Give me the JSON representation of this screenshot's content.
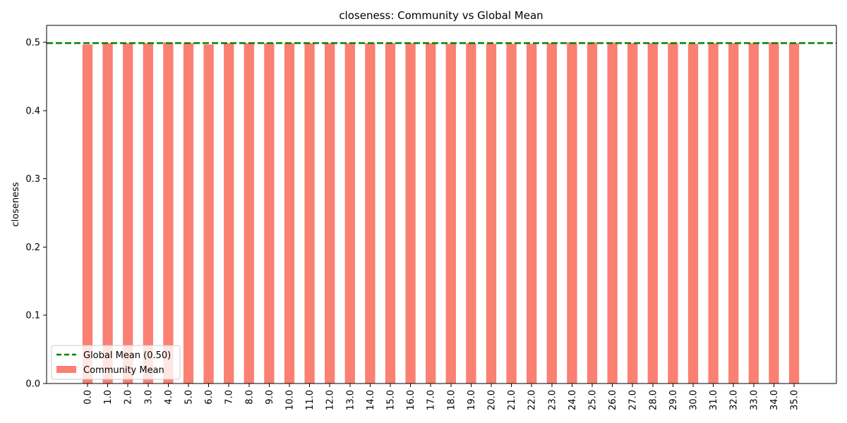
{
  "chart_data": {
    "type": "bar",
    "title": "closeness: Community vs Global Mean",
    "xlabel": "",
    "ylabel": "closeness",
    "categories": [
      "0.0",
      "1.0",
      "2.0",
      "3.0",
      "4.0",
      "5.0",
      "6.0",
      "7.0",
      "8.0",
      "9.0",
      "10.0",
      "11.0",
      "12.0",
      "13.0",
      "14.0",
      "15.0",
      "16.0",
      "17.0",
      "18.0",
      "19.0",
      "20.0",
      "21.0",
      "22.0",
      "23.0",
      "24.0",
      "25.0",
      "26.0",
      "27.0",
      "28.0",
      "29.0",
      "30.0",
      "31.0",
      "32.0",
      "33.0",
      "34.0",
      "35.0"
    ],
    "series": [
      {
        "name": "Community Mean",
        "color": "#fa8072",
        "values": [
          0.497,
          0.499,
          0.499,
          0.499,
          0.5,
          0.499,
          0.497,
          0.499,
          0.499,
          0.499,
          0.499,
          0.499,
          0.499,
          0.499,
          0.499,
          0.499,
          0.499,
          0.499,
          0.498,
          0.499,
          0.498,
          0.498,
          0.498,
          0.499,
          0.5,
          0.5,
          0.5,
          0.499,
          0.499,
          0.499,
          0.498,
          0.499,
          0.499,
          0.499,
          0.5,
          0.499
        ]
      }
    ],
    "reference_line": {
      "name": "Global Mean (0.50)",
      "value": 0.499,
      "color": "#008000",
      "style": "dashed"
    },
    "yticks": [
      "0.0",
      "0.1",
      "0.2",
      "0.3",
      "0.4",
      "0.5"
    ],
    "ylim": [
      0,
      0.525
    ],
    "grid": false,
    "legend_position": "lower-left"
  }
}
